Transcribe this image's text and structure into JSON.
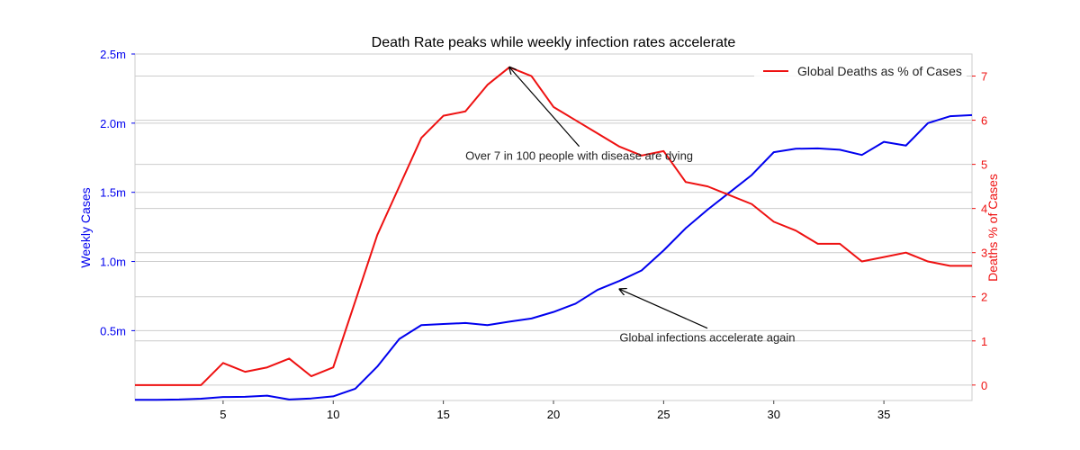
{
  "chart_data": {
    "type": "line",
    "title": "Death Rate peaks while weekly infection rates accelerate",
    "xlabel": "",
    "xlim": [
      1,
      39
    ],
    "x_ticks": [
      5,
      10,
      15,
      20,
      25,
      30,
      35
    ],
    "grid": "horizontal",
    "legend": {
      "position": "top-right"
    },
    "y_left": {
      "label": "Weekly Cases",
      "color": "#0000ee",
      "ylim": [
        -5000,
        2500000
      ],
      "ticks": [
        {
          "value": 500000,
          "label": "0.5m"
        },
        {
          "value": 1000000,
          "label": "1.0m"
        },
        {
          "value": 1500000,
          "label": "1.5m"
        },
        {
          "value": 2000000,
          "label": "2.0m"
        },
        {
          "value": 2500000,
          "label": "2.5m"
        }
      ]
    },
    "y_right": {
      "label": "Deaths % of Cases",
      "color": "#ee1111",
      "ylim": [
        -0.35,
        7.5
      ],
      "ticks": [
        0,
        1,
        2,
        3,
        4,
        5,
        6,
        7
      ]
    },
    "series": [
      {
        "name": "",
        "axis": "left",
        "color": "#0000ee",
        "x": [
          1,
          2,
          3,
          4,
          5,
          6,
          7,
          8,
          9,
          10,
          11,
          12,
          13,
          14,
          15,
          16,
          17,
          18,
          19,
          20,
          21,
          22,
          23,
          24,
          25,
          26,
          27,
          28,
          29,
          30,
          31,
          32,
          33,
          34,
          35,
          36,
          37,
          38,
          39
        ],
        "values": [
          0,
          0,
          2000,
          8000,
          20000,
          22000,
          30000,
          2000,
          10000,
          25000,
          80000,
          240000,
          440000,
          540000,
          548000,
          555000,
          540000,
          565000,
          588000,
          635000,
          695000,
          795000,
          860000,
          935000,
          1080000,
          1240000,
          1375000,
          1500000,
          1625000,
          1790000,
          1815000,
          1818000,
          1808000,
          1770000,
          1865000,
          1838000,
          2000000,
          2050000,
          2058000
        ]
      },
      {
        "name": "Global Deaths as % of Cases",
        "axis": "right",
        "color": "#ee1111",
        "x": [
          1,
          2,
          3,
          4,
          5,
          6,
          7,
          8,
          9,
          10,
          11,
          12,
          13,
          14,
          15,
          16,
          17,
          18,
          19,
          20,
          21,
          22,
          23,
          24,
          25,
          26,
          27,
          28,
          29,
          30,
          31,
          32,
          33,
          34,
          35,
          36,
          37,
          38,
          39
        ],
        "values": [
          0,
          0,
          0,
          0,
          0.5,
          0.3,
          0.4,
          0.6,
          0.2,
          0.4,
          1.9,
          3.4,
          4.5,
          5.6,
          6.1,
          6.2,
          6.8,
          7.2,
          7.0,
          6.3,
          6.0,
          5.7,
          5.4,
          5.2,
          5.3,
          4.6,
          4.5,
          4.3,
          4.1,
          3.7,
          3.5,
          3.2,
          3.2,
          2.8,
          2.9,
          3.0,
          2.8,
          2.7,
          2.7
        ]
      }
    ],
    "annotations": [
      {
        "text": "Over 7 in 100 people with disease are dying",
        "axis": "right",
        "point": [
          18,
          7.2
        ],
        "text_at": [
          16,
          5.1
        ]
      },
      {
        "text": "Global infections accelerate again",
        "axis": "left",
        "point": [
          23,
          800000
        ],
        "text_at": [
          23,
          420000
        ]
      }
    ]
  }
}
